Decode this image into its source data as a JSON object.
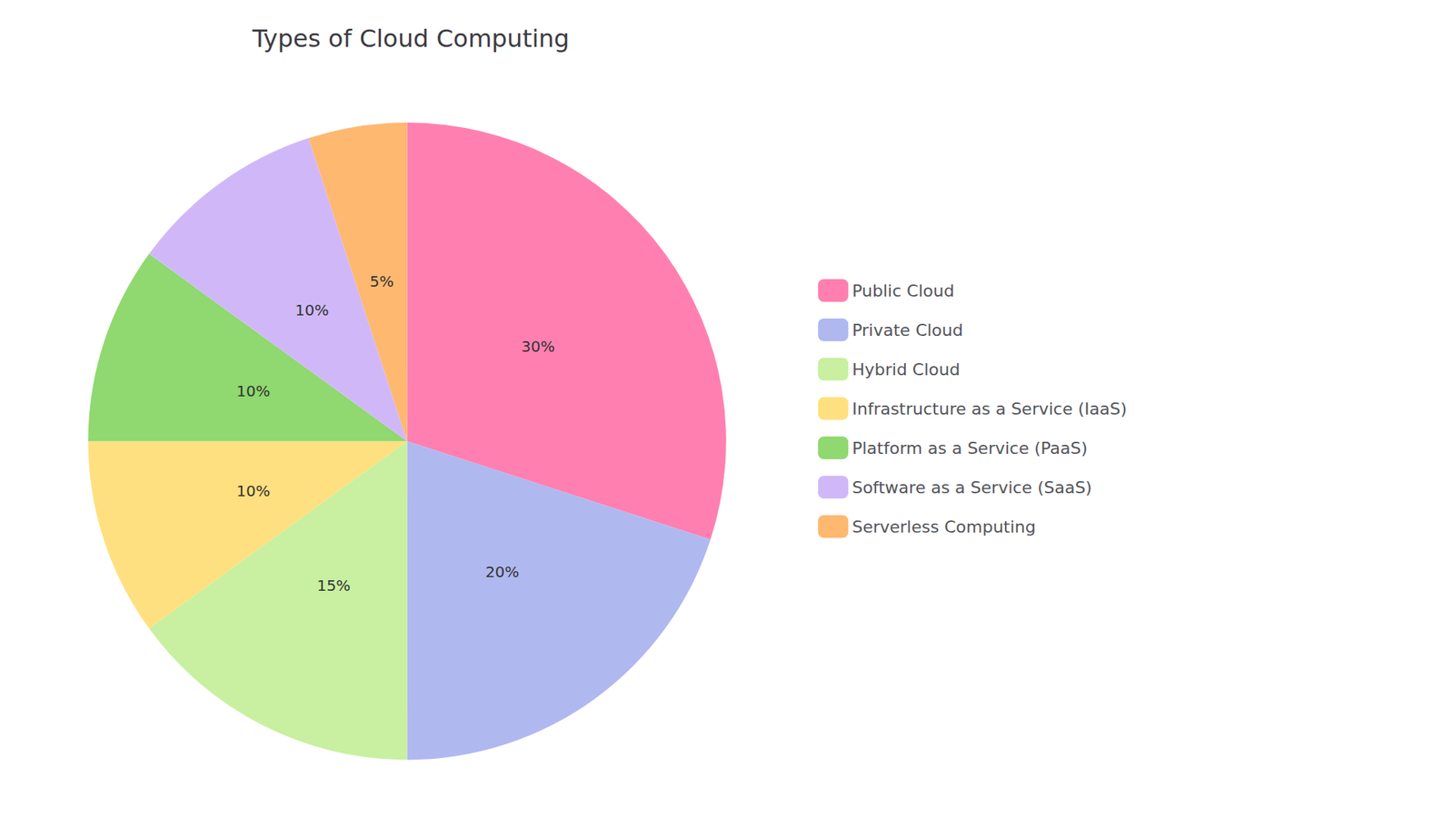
{
  "chart_data": {
    "type": "pie",
    "title": "Types of Cloud Computing",
    "categories": [
      "Public Cloud",
      "Private Cloud",
      "Hybrid Cloud",
      "Infrastructure as a Service (IaaS)",
      "Platform as a Service (PaaS)",
      "Software as a Service (SaaS)",
      "Serverless Computing"
    ],
    "values": [
      30,
      20,
      15,
      10,
      10,
      10,
      5
    ],
    "value_labels": [
      "30%",
      "20%",
      "15%",
      "10%",
      "10%",
      "10%",
      "5%"
    ],
    "colors": [
      "#FF80B0",
      "#B0B8F0",
      "#C8F0A0",
      "#FFE080",
      "#90D870",
      "#D0B8F8",
      "#FFB870"
    ],
    "data_labels": true,
    "legend": "right"
  }
}
